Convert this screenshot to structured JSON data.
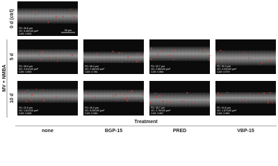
{
  "row_group_label": "MV + NMBA",
  "rows": [
    "0 d (ctrl)",
    "5 d",
    "10 d"
  ],
  "axis_title": "Treatment",
  "columns": [
    "none",
    "BGP-15",
    "PRED",
    "VBP-15"
  ],
  "scale_bar": "50 µm",
  "panels": [
    {
      "fd": "FD: 45.8 µm",
      "vd": "VD: 5.45/100 µm²",
      "cas": "CAS: 0.893"
    },
    {
      "fd": "FD: 38.9 µm",
      "vd": "VD: 3.51/100 µm²",
      "cas": "CAS: 0.853"
    },
    {
      "fd": "FD: 36.4 µm",
      "vd": "VD: 2.46/100 µm²",
      "cas": "CAS: 0.784"
    },
    {
      "fd": "FD: 32.7 µm",
      "vd": "VD: 2.86/100 µm²",
      "cas": "CAS: 0.860"
    },
    {
      "fd": "FD: 32.4 µm",
      "vd": "VD: 3.03/100 µm²",
      "cas": "CAS: 0.979"
    },
    {
      "fd": "FD: 22.5 µm",
      "vd": "VD: 1.61/100 µm²",
      "cas": "CAS: 0.808"
    },
    {
      "fd": "FD: 49.3 µm",
      "vd": "VD: 5.29/100 µm²",
      "cas": "CAS: 0.946"
    },
    {
      "fd": "FD: 36.7 µm",
      "vd": "VD: 2.76/100 µm²",
      "cas": "CAS: 0.867"
    },
    {
      "fd": "FD: 34.8 µm",
      "vd": "VD: 1.67/100 µm²",
      "cas": "CAS: 0.984"
    }
  ]
}
